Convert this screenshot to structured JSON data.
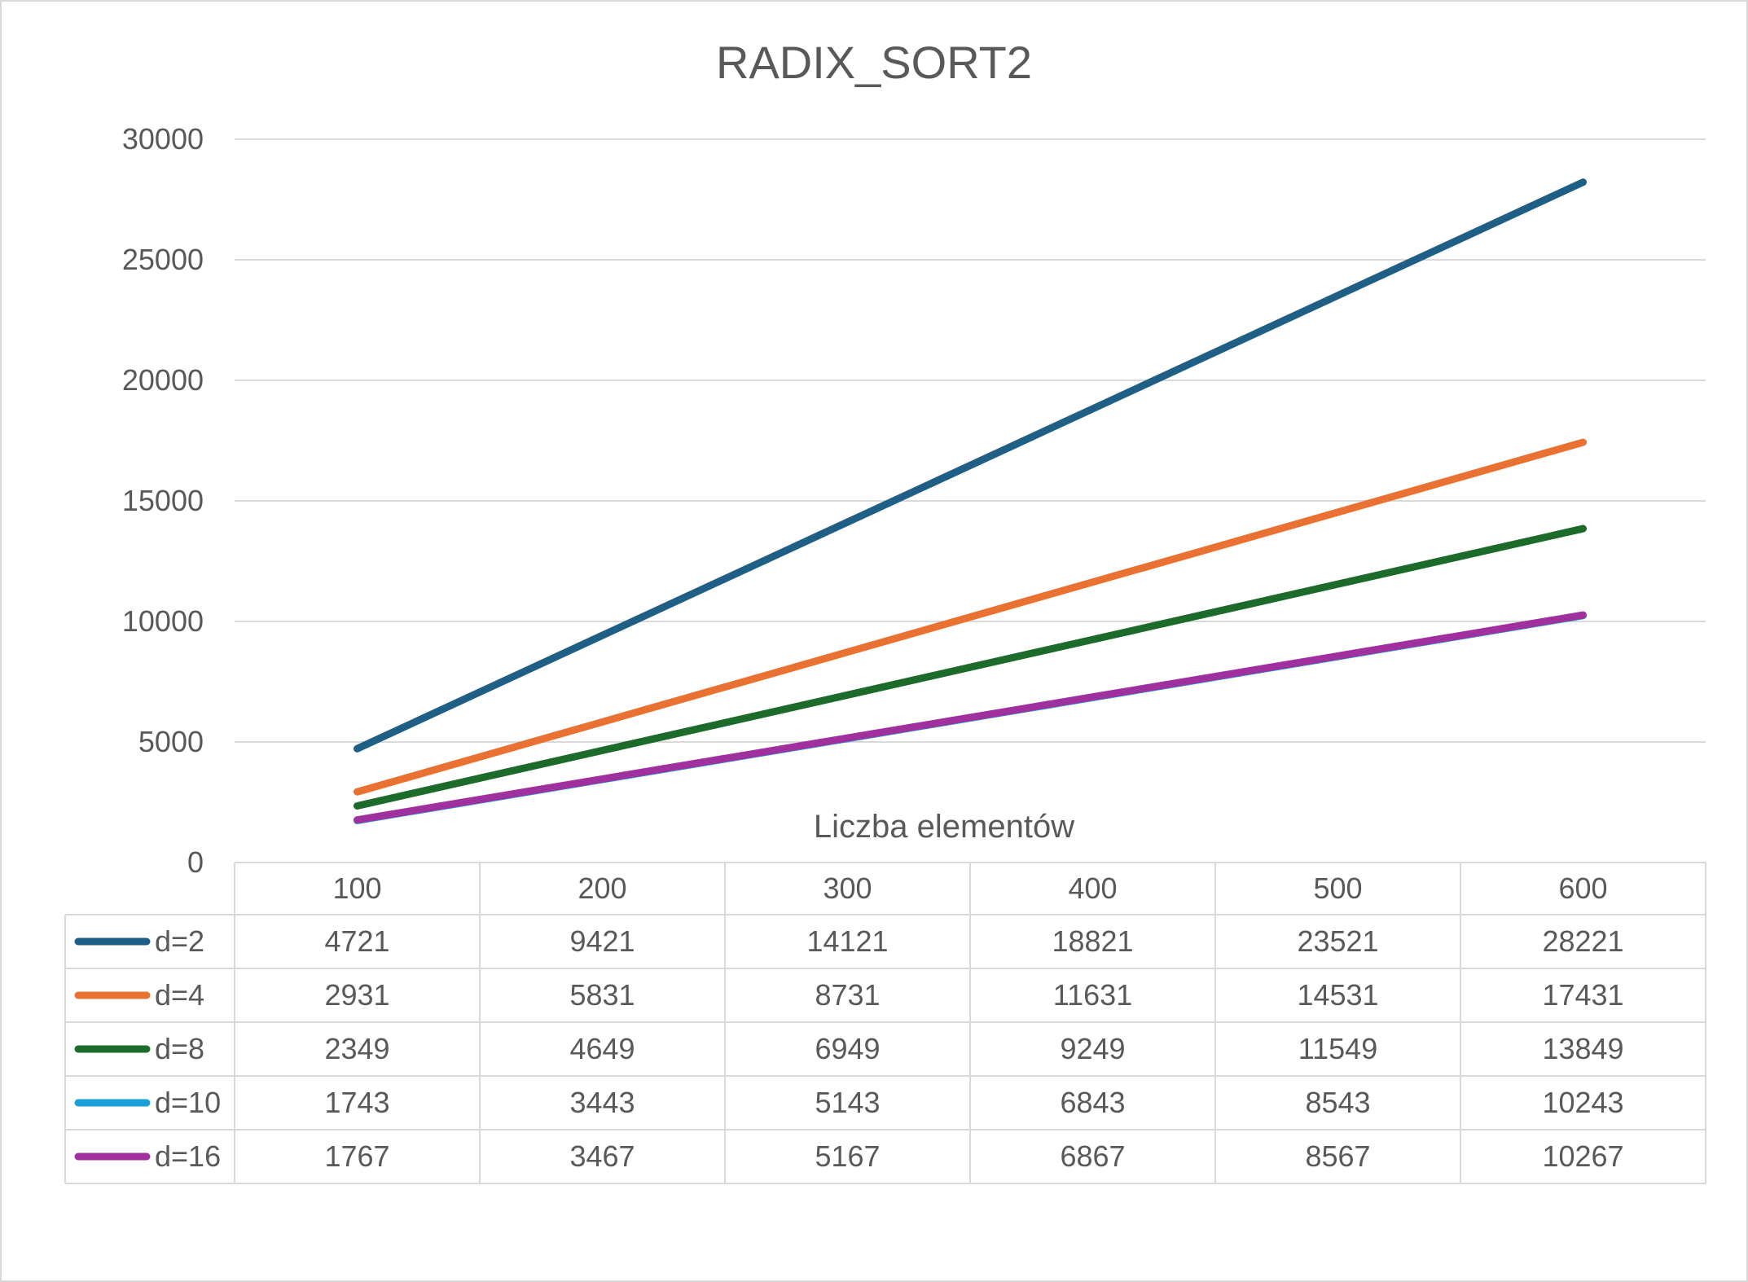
{
  "chart_data": {
    "type": "line",
    "title": "RADIX_SORT2",
    "xlabel": "Liczba elementów",
    "ylabel": "",
    "categories": [
      "100",
      "200",
      "300",
      "400",
      "500",
      "600"
    ],
    "ylim": [
      0,
      30000
    ],
    "yticks": [
      "0",
      "5000",
      "10000",
      "15000",
      "20000",
      "25000",
      "30000"
    ],
    "grid": true,
    "legend": "data-table",
    "series": [
      {
        "name": "d=2",
        "color": "#1f5f85",
        "values": [
          4721,
          9421,
          14121,
          18821,
          23521,
          28221
        ]
      },
      {
        "name": "d=4",
        "color": "#e97132",
        "values": [
          2931,
          5831,
          8731,
          11631,
          14531,
          17431
        ]
      },
      {
        "name": "d=8",
        "color": "#1c6b2a",
        "values": [
          2349,
          4649,
          6949,
          9249,
          11549,
          13849
        ]
      },
      {
        "name": "d=10",
        "color": "#1aa0d8",
        "values": [
          1743,
          3443,
          5143,
          6843,
          8543,
          10243
        ]
      },
      {
        "name": "d=16",
        "color": "#a0309e",
        "values": [
          1767,
          3467,
          5167,
          6867,
          8567,
          10267
        ]
      }
    ],
    "table": {
      "header": [
        "100",
        "200",
        "300",
        "400",
        "500",
        "600"
      ],
      "rows": [
        {
          "name": "d=2",
          "cells": [
            "4721",
            "9421",
            "14121",
            "18821",
            "23521",
            "28221"
          ]
        },
        {
          "name": "d=4",
          "cells": [
            "2931",
            "5831",
            "8731",
            "11631",
            "14531",
            "17431"
          ]
        },
        {
          "name": "d=8",
          "cells": [
            "2349",
            "4649",
            "6949",
            "9249",
            "11549",
            "13849"
          ]
        },
        {
          "name": "d=10",
          "cells": [
            "1743",
            "3443",
            "5143",
            "6843",
            "8543",
            "10243"
          ]
        },
        {
          "name": "d=16",
          "cells": [
            "1767",
            "3467",
            "5167",
            "6867",
            "8567",
            "10267"
          ]
        }
      ]
    }
  }
}
